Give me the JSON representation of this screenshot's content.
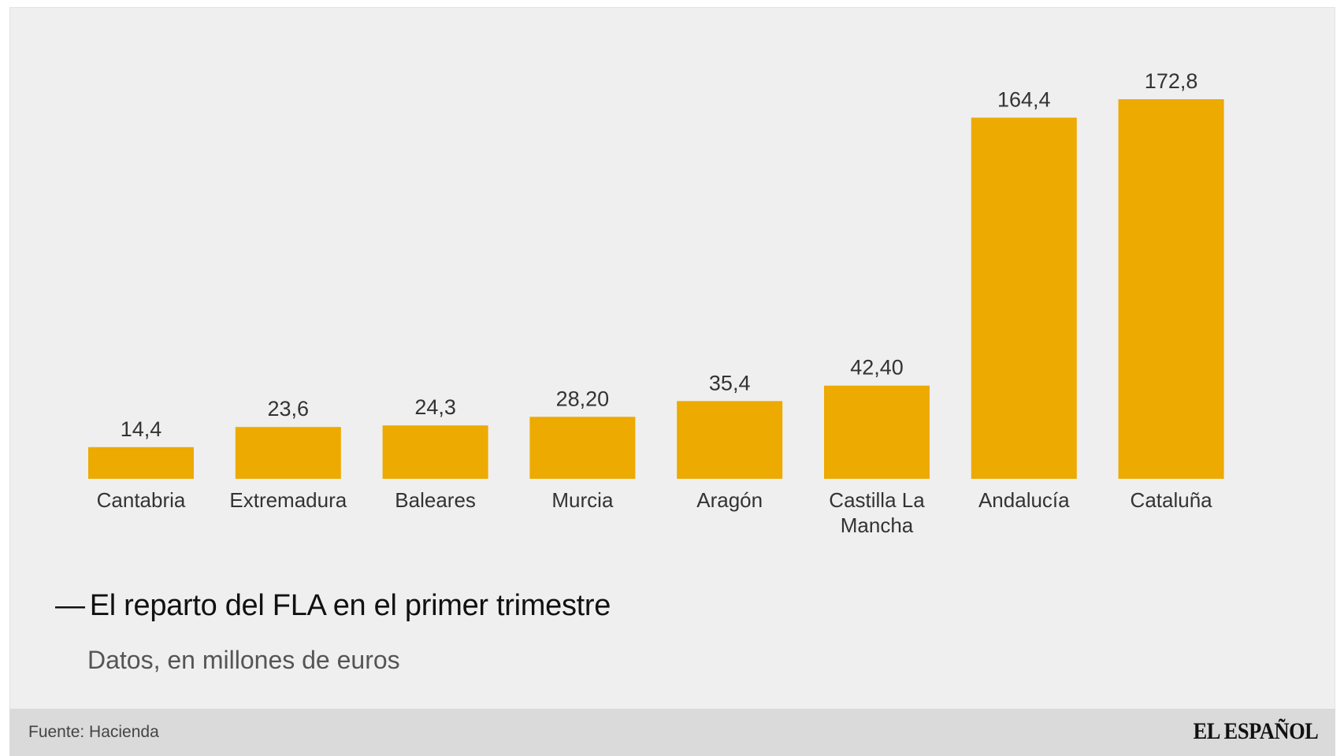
{
  "chart_data": {
    "type": "bar",
    "title": "El reparto del FLA en el primer trimestre",
    "subtitle": "Datos, en millones de euros",
    "title_dash": "—",
    "categories": [
      [
        "Cantabria"
      ],
      [
        "Extremadura"
      ],
      [
        "Baleares"
      ],
      [
        "Murcia"
      ],
      [
        "Aragón"
      ],
      [
        "Castilla La",
        "Mancha"
      ],
      [
        "Andalucía"
      ],
      [
        "Cataluña"
      ]
    ],
    "values": [
      14.4,
      23.6,
      24.3,
      28.2,
      35.4,
      42.4,
      164.4,
      172.8
    ],
    "value_labels": [
      "14,4",
      "23,6",
      "24,3",
      "28,20",
      "35,4",
      "42,40",
      "164,4",
      "172,8"
    ],
    "ylim": [
      0,
      172.8
    ],
    "xlabel": "",
    "ylabel": "",
    "grid": false,
    "bar_color": "#EDAA00"
  },
  "footer": {
    "source": "Fuente: Hacienda",
    "brand": "EL ESPAÑOL"
  },
  "colors": {
    "background": "#efefef",
    "footer": "#dadada",
    "bar": "#EDAA00"
  }
}
